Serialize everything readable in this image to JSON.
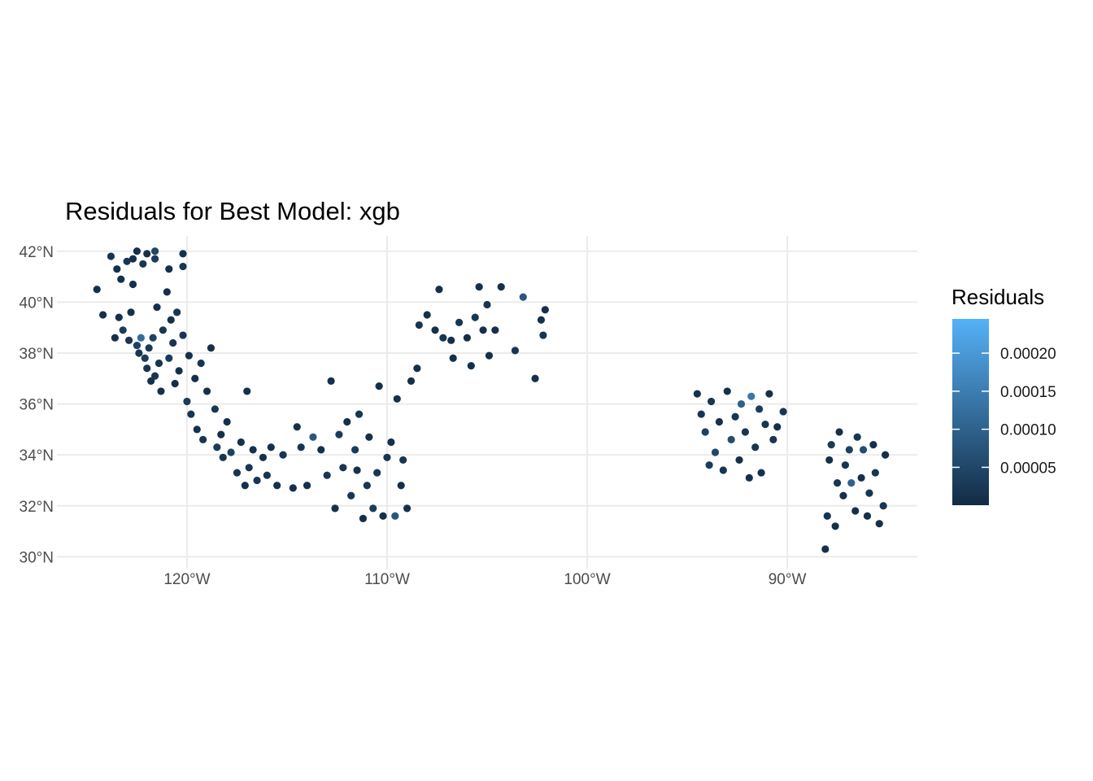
{
  "chart_data": {
    "type": "scatter",
    "title": "Residuals for Best Model: xgb",
    "xlabel": "",
    "ylabel": "",
    "xlim": [
      -126.5,
      -83.5
    ],
    "ylim": [
      29.5,
      42.6
    ],
    "x_ticks": [
      {
        "value": -120,
        "label": "120°W"
      },
      {
        "value": -110,
        "label": "110°W"
      },
      {
        "value": -100,
        "label": "100°W"
      },
      {
        "value": -90,
        "label": "90°W"
      }
    ],
    "y_ticks": [
      {
        "value": 30,
        "label": "30°N"
      },
      {
        "value": 32,
        "label": "32°N"
      },
      {
        "value": 34,
        "label": "34°N"
      },
      {
        "value": 36,
        "label": "36°N"
      },
      {
        "value": 38,
        "label": "38°N"
      },
      {
        "value": 40,
        "label": "40°N"
      },
      {
        "value": 42,
        "label": "42°N"
      }
    ],
    "grid": true,
    "legend": {
      "title": "Residuals",
      "position": "right",
      "range": [
        2e-07,
        0.000245
      ],
      "ticks": [
        {
          "value": 5e-05,
          "label": "0.00005"
        },
        {
          "value": 0.0001,
          "label": "0.00010"
        },
        {
          "value": 0.00015,
          "label": "0.00015"
        },
        {
          "value": 0.0002,
          "label": "0.00020"
        }
      ],
      "color_low": "#132B43",
      "color_high": "#56B1F7"
    },
    "points": [
      [
        -124.5,
        40.5,
        1e-05
      ],
      [
        -124.2,
        39.5,
        1e-05
      ],
      [
        -123.8,
        41.8,
        2e-05
      ],
      [
        -123.5,
        41.3,
        1e-05
      ],
      [
        -123.3,
        40.9,
        1e-05
      ],
      [
        -123.0,
        41.6,
        2e-05
      ],
      [
        -122.7,
        41.7,
        1e-05
      ],
      [
        -122.5,
        42.0,
        1e-05
      ],
      [
        -122.2,
        41.5,
        2e-05
      ],
      [
        -122.0,
        41.9,
        1e-05
      ],
      [
        -121.6,
        41.7,
        3e-05
      ],
      [
        -121.6,
        42.0,
        5e-05
      ],
      [
        -120.9,
        41.3,
        1e-05
      ],
      [
        -120.2,
        41.4,
        2e-05
      ],
      [
        -120.2,
        41.9,
        1e-05
      ],
      [
        -123.6,
        38.6,
        1e-05
      ],
      [
        -123.4,
        39.4,
        1e-05
      ],
      [
        -123.2,
        38.9,
        3e-05
      ],
      [
        -122.9,
        38.5,
        2e-05
      ],
      [
        -122.8,
        39.6,
        1e-05
      ],
      [
        -122.7,
        40.7,
        1e-05
      ],
      [
        -122.5,
        38.3,
        4e-05
      ],
      [
        -122.4,
        38.0,
        2e-05
      ],
      [
        -122.3,
        38.6,
        0.00012
      ],
      [
        -122.1,
        37.8,
        3e-05
      ],
      [
        -122.0,
        37.4,
        2e-05
      ],
      [
        -121.9,
        38.2,
        3e-05
      ],
      [
        -121.8,
        36.9,
        1e-05
      ],
      [
        -121.7,
        38.6,
        4e-05
      ],
      [
        -121.6,
        37.1,
        2e-05
      ],
      [
        -121.5,
        39.8,
        1e-05
      ],
      [
        -121.4,
        37.6,
        2e-05
      ],
      [
        -121.3,
        36.5,
        1e-05
      ],
      [
        -121.2,
        38.9,
        2e-05
      ],
      [
        -121.0,
        40.4,
        1e-05
      ],
      [
        -120.9,
        37.8,
        3e-05
      ],
      [
        -120.8,
        39.3,
        1e-05
      ],
      [
        -120.7,
        38.4,
        2e-05
      ],
      [
        -120.6,
        36.8,
        1e-05
      ],
      [
        -120.5,
        39.6,
        2e-05
      ],
      [
        -120.4,
        37.3,
        1e-05
      ],
      [
        -120.2,
        38.7,
        2e-05
      ],
      [
        -120.0,
        36.1,
        3e-05
      ],
      [
        -119.9,
        37.9,
        1e-05
      ],
      [
        -119.8,
        35.6,
        2e-05
      ],
      [
        -119.6,
        37.0,
        1e-05
      ],
      [
        -119.5,
        35.0,
        1e-05
      ],
      [
        -119.3,
        37.6,
        2e-05
      ],
      [
        -119.2,
        34.6,
        2e-05
      ],
      [
        -119.0,
        36.5,
        1e-05
      ],
      [
        -118.8,
        38.2,
        1e-05
      ],
      [
        -118.6,
        35.8,
        2e-05
      ],
      [
        -118.5,
        34.3,
        3e-05
      ],
      [
        -118.3,
        34.8,
        1e-05
      ],
      [
        -118.2,
        33.9,
        2e-05
      ],
      [
        -118.0,
        35.3,
        1e-05
      ],
      [
        -117.8,
        34.1,
        4e-05
      ],
      [
        -117.5,
        33.3,
        2e-05
      ],
      [
        -117.3,
        34.5,
        1e-05
      ],
      [
        -117.1,
        32.8,
        1e-05
      ],
      [
        -117.0,
        36.5,
        1e-05
      ],
      [
        -116.9,
        33.5,
        2e-05
      ],
      [
        -116.7,
        34.2,
        1e-05
      ],
      [
        -116.5,
        33.0,
        2e-05
      ],
      [
        -116.2,
        33.9,
        1e-05
      ],
      [
        -116.0,
        33.2,
        2e-05
      ],
      [
        -115.8,
        34.3,
        1e-05
      ],
      [
        -115.5,
        32.8,
        1e-05
      ],
      [
        -115.2,
        34.0,
        2e-05
      ],
      [
        -114.7,
        32.7,
        1e-05
      ],
      [
        -114.5,
        35.1,
        1e-05
      ],
      [
        -114.3,
        34.3,
        2e-05
      ],
      [
        -114.0,
        32.8,
        1e-05
      ],
      [
        -113.7,
        34.7,
        8e-05
      ],
      [
        -113.3,
        34.2,
        1e-05
      ],
      [
        -113.0,
        33.2,
        2e-05
      ],
      [
        -112.8,
        36.9,
        1e-05
      ],
      [
        -112.6,
        31.9,
        1e-05
      ],
      [
        -112.4,
        34.8,
        3e-05
      ],
      [
        -112.2,
        33.5,
        2e-05
      ],
      [
        -112.0,
        35.3,
        1e-05
      ],
      [
        -111.8,
        32.4,
        2e-05
      ],
      [
        -111.6,
        34.2,
        3e-05
      ],
      [
        -111.5,
        33.4,
        1e-05
      ],
      [
        -111.4,
        35.6,
        2e-05
      ],
      [
        -111.2,
        31.5,
        1e-05
      ],
      [
        -111.0,
        32.8,
        2e-05
      ],
      [
        -110.9,
        34.7,
        1e-05
      ],
      [
        -110.7,
        31.9,
        3e-05
      ],
      [
        -110.5,
        33.3,
        2e-05
      ],
      [
        -110.4,
        36.7,
        1e-05
      ],
      [
        -110.2,
        31.6,
        1e-05
      ],
      [
        -110.0,
        33.9,
        2e-05
      ],
      [
        -109.8,
        34.5,
        1e-05
      ],
      [
        -109.6,
        31.6,
        8e-05
      ],
      [
        -109.5,
        36.2,
        1e-05
      ],
      [
        -109.3,
        32.8,
        1e-05
      ],
      [
        -109.2,
        33.8,
        2e-05
      ],
      [
        -109.0,
        31.9,
        1e-05
      ],
      [
        -108.8,
        36.9,
        1e-05
      ],
      [
        -108.5,
        37.4,
        1e-05
      ],
      [
        -108.4,
        39.1,
        2e-05
      ],
      [
        -108.0,
        39.5,
        1e-05
      ],
      [
        -107.6,
        38.9,
        1e-05
      ],
      [
        -107.4,
        40.5,
        1e-05
      ],
      [
        -107.2,
        38.6,
        2e-05
      ],
      [
        -106.8,
        38.5,
        1e-05
      ],
      [
        -106.7,
        37.8,
        1e-05
      ],
      [
        -106.4,
        39.2,
        2e-05
      ],
      [
        -106.0,
        38.6,
        1e-05
      ],
      [
        -105.8,
        37.5,
        1e-05
      ],
      [
        -105.6,
        39.4,
        2e-05
      ],
      [
        -105.4,
        40.6,
        1e-05
      ],
      [
        -105.2,
        38.9,
        1e-05
      ],
      [
        -105.0,
        39.9,
        2e-05
      ],
      [
        -104.9,
        37.9,
        1e-05
      ],
      [
        -104.6,
        38.9,
        1e-05
      ],
      [
        -104.3,
        40.6,
        1e-05
      ],
      [
        -103.6,
        38.1,
        2e-05
      ],
      [
        -103.2,
        40.2,
        8e-05
      ],
      [
        -102.6,
        37.0,
        1e-05
      ],
      [
        -102.3,
        39.3,
        1e-05
      ],
      [
        -102.2,
        38.7,
        2e-05
      ],
      [
        -102.1,
        39.7,
        1e-05
      ],
      [
        -94.5,
        36.4,
        1e-05
      ],
      [
        -94.3,
        35.6,
        2e-05
      ],
      [
        -94.1,
        34.9,
        4e-05
      ],
      [
        -93.9,
        33.6,
        3e-05
      ],
      [
        -93.8,
        36.1,
        2e-05
      ],
      [
        -93.6,
        34.1,
        5e-05
      ],
      [
        -93.4,
        35.3,
        1e-05
      ],
      [
        -93.2,
        33.4,
        2e-05
      ],
      [
        -93.0,
        36.5,
        1e-05
      ],
      [
        -92.8,
        34.6,
        6e-05
      ],
      [
        -92.6,
        35.5,
        2e-05
      ],
      [
        -92.4,
        33.8,
        1e-05
      ],
      [
        -92.3,
        36.0,
        0.0001
      ],
      [
        -92.1,
        34.9,
        2e-05
      ],
      [
        -91.9,
        33.1,
        1e-05
      ],
      [
        -91.8,
        36.3,
        0.00014
      ],
      [
        -91.6,
        34.3,
        2e-05
      ],
      [
        -91.4,
        35.8,
        3e-05
      ],
      [
        -91.3,
        33.3,
        1e-05
      ],
      [
        -91.1,
        35.2,
        2e-05
      ],
      [
        -90.9,
        36.4,
        1e-05
      ],
      [
        -90.7,
        34.6,
        2e-05
      ],
      [
        -90.5,
        35.1,
        1e-05
      ],
      [
        -90.2,
        35.7,
        2e-05
      ],
      [
        -88.1,
        30.3,
        1e-05
      ],
      [
        -88.0,
        31.6,
        2e-05
      ],
      [
        -87.9,
        33.8,
        1e-05
      ],
      [
        -87.8,
        34.4,
        3e-05
      ],
      [
        -87.6,
        31.2,
        1e-05
      ],
      [
        -87.5,
        32.9,
        2e-05
      ],
      [
        -87.4,
        34.9,
        1e-05
      ],
      [
        -87.2,
        32.4,
        1e-05
      ],
      [
        -87.1,
        33.6,
        2e-05
      ],
      [
        -86.9,
        34.2,
        4e-05
      ],
      [
        -86.8,
        32.9,
        0.0001
      ],
      [
        -86.6,
        31.8,
        1e-05
      ],
      [
        -86.5,
        34.7,
        2e-05
      ],
      [
        -86.3,
        33.1,
        1e-05
      ],
      [
        -86.2,
        34.2,
        6e-05
      ],
      [
        -86.0,
        31.6,
        1e-05
      ],
      [
        -85.9,
        32.5,
        2e-05
      ],
      [
        -85.7,
        34.4,
        1e-05
      ],
      [
        -85.6,
        33.3,
        2e-05
      ],
      [
        -85.4,
        31.3,
        1e-05
      ],
      [
        -85.2,
        32.0,
        2e-05
      ],
      [
        -85.1,
        34.0,
        1e-05
      ]
    ]
  }
}
